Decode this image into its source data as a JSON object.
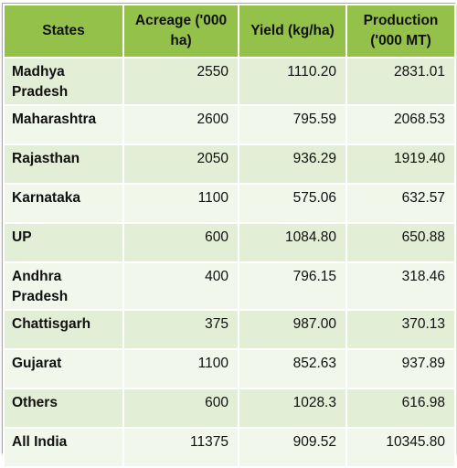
{
  "table": {
    "headers": [
      "States",
      "Acreage ('000 ha)",
      "Yield (kg/ha)",
      "Production ('000 MT)"
    ],
    "rows": [
      [
        "Madhya Pradesh",
        "2550",
        "1110.20",
        "2831.01"
      ],
      [
        "Maharashtra",
        "2600",
        "795.59",
        "2068.53"
      ],
      [
        "Rajasthan",
        "2050",
        "936.29",
        "1919.40"
      ],
      [
        "Karnataka",
        "1100",
        "575.06",
        "632.57"
      ],
      [
        "UP",
        "600",
        "1084.80",
        "650.88"
      ],
      [
        "Andhra Pradesh",
        "400",
        "796.15",
        "318.46"
      ],
      [
        "Chattisgarh",
        "375",
        "987.00",
        "370.13"
      ],
      [
        "Gujarat",
        "1100",
        "852.63",
        "937.89"
      ],
      [
        "Others",
        "600",
        "1028.3",
        "616.98"
      ],
      [
        "All India",
        "11375",
        "909.52",
        "10345.80"
      ]
    ]
  },
  "colors": {
    "header_bg": "#94c14a",
    "row_odd_bg": "#e2eed5",
    "row_even_bg": "#f1f7eb"
  }
}
